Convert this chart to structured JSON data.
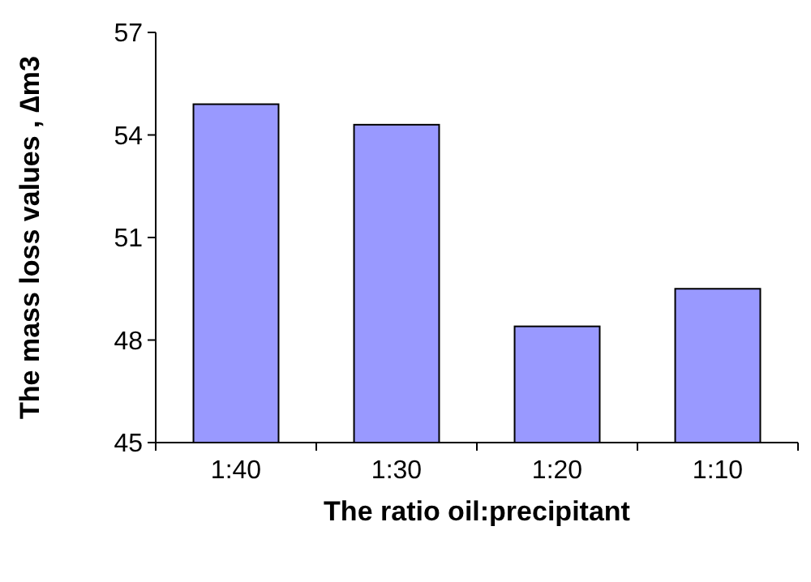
{
  "chart_data": {
    "type": "bar",
    "xlabel": "The ratio oil:precipitant",
    "ylabel": "The mass loss values , ∆m3",
    "categories": [
      "1:40",
      "1:30",
      "1:20",
      "1:10"
    ],
    "values": [
      54.9,
      54.3,
      48.4,
      49.5
    ],
    "color": "#9999ff",
    "ylim": [
      45,
      57
    ],
    "yticks": [
      45,
      48,
      51,
      54,
      57
    ]
  }
}
